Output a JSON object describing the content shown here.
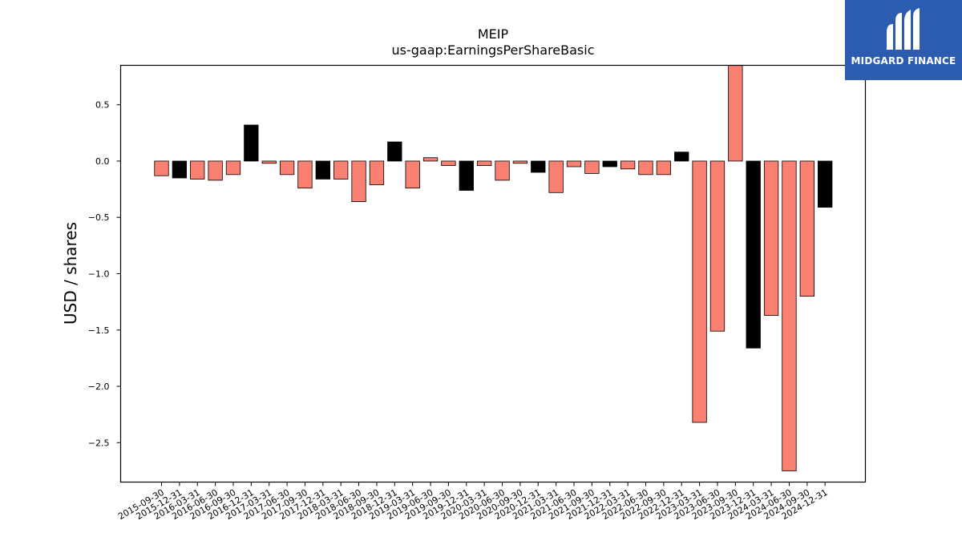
{
  "brand": {
    "logo_text": "MIDGARD FINANCE",
    "logo_bg": "#2b5cb0"
  },
  "chart_data": {
    "type": "bar",
    "title": "MEIP",
    "subtitle": "us-gaap:EarningsPerShareBasic",
    "xlabel": "",
    "ylabel": "USD / shares",
    "ylim": [
      -2.85,
      0.85
    ],
    "yticks": [
      0.5,
      0.0,
      -0.5,
      -1.0,
      -1.5,
      -2.0,
      -2.5
    ],
    "ytick_labels": [
      "0.5",
      "0.0",
      "−0.5",
      "−1.0",
      "−1.5",
      "−2.0",
      "−2.5"
    ],
    "grid": false,
    "colors": {
      "default": "#fa8072",
      "highlight": "#000000"
    },
    "categories": [
      "2015-09-30",
      "2015-12-31",
      "2016-03-31",
      "2016-06-30",
      "2016-09-30",
      "2016-12-31",
      "2017-03-31",
      "2017-06-30",
      "2017-09-30",
      "2017-12-31",
      "2018-03-31",
      "2018-06-30",
      "2018-09-30",
      "2018-12-31",
      "2019-03-31",
      "2019-06-30",
      "2019-09-30",
      "2019-12-31",
      "2020-03-31",
      "2020-06-30",
      "2020-09-30",
      "2020-12-31",
      "2021-03-31",
      "2021-06-30",
      "2021-09-30",
      "2021-12-31",
      "2022-03-31",
      "2022-06-30",
      "2022-09-30",
      "2022-12-31",
      "2023-03-31",
      "2023-06-30",
      "2023-09-30",
      "2023-12-31",
      "2024-03-31",
      "2024-06-30",
      "2024-09-30",
      "2024-12-31"
    ],
    "values": [
      -0.13,
      -0.15,
      -0.16,
      -0.17,
      -0.12,
      0.32,
      -0.02,
      -0.12,
      -0.24,
      -0.16,
      -0.16,
      -0.36,
      -0.21,
      0.17,
      -0.24,
      0.03,
      -0.04,
      -0.26,
      -0.04,
      -0.17,
      -0.02,
      -0.1,
      -0.28,
      -0.05,
      -0.11,
      -0.05,
      -0.07,
      -0.12,
      -0.12,
      0.08,
      -2.32,
      -1.51,
      0.85,
      -1.66,
      -1.37,
      -2.75,
      -1.2,
      -0.41
    ],
    "highlight": [
      false,
      true,
      false,
      false,
      false,
      true,
      false,
      false,
      false,
      true,
      false,
      false,
      false,
      true,
      false,
      false,
      false,
      true,
      false,
      false,
      false,
      true,
      false,
      false,
      false,
      true,
      false,
      false,
      false,
      true,
      false,
      false,
      false,
      true,
      false,
      false,
      false,
      true
    ]
  }
}
